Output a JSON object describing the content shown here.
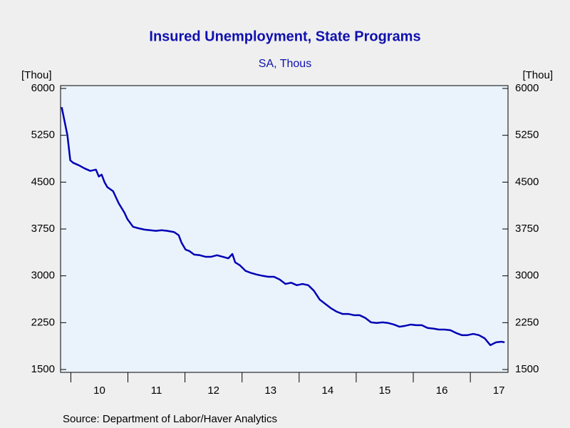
{
  "chart_data": {
    "type": "line",
    "title": "Insured Unemployment, State Programs",
    "subtitle": "SA, Thous",
    "y_label": "[Thou]",
    "y2_label": "[Thou]",
    "source": "Source:  Department of Labor/Haver Analytics",
    "x": [
      9.84,
      9.89,
      9.94,
      9.99,
      10.04,
      10.14,
      10.24,
      10.34,
      10.44,
      10.49,
      10.54,
      10.59,
      10.64,
      10.74,
      10.84,
      10.94,
      10.99,
      11.09,
      11.19,
      11.29,
      11.39,
      11.49,
      11.59,
      11.69,
      11.81,
      11.89,
      11.94,
      12.01,
      12.08,
      12.16,
      12.26,
      12.36,
      12.46,
      12.56,
      12.66,
      12.76,
      12.83,
      12.88,
      12.96,
      13.06,
      13.16,
      13.26,
      13.36,
      13.46,
      13.56,
      13.66,
      13.76,
      13.86,
      13.96,
      14.06,
      14.16,
      14.26,
      14.36,
      14.46,
      14.56,
      14.66,
      14.76,
      14.86,
      14.96,
      15.06,
      15.16,
      15.26,
      15.36,
      15.46,
      15.56,
      15.66,
      15.76,
      15.86,
      15.96,
      16.05,
      16.15,
      16.25,
      16.35,
      16.45,
      16.55,
      16.65,
      16.75,
      16.85,
      16.95,
      17.05,
      17.15,
      17.25,
      17.35,
      17.45,
      17.55,
      17.6
    ],
    "series": [
      {
        "color": "#0000b4",
        "values": [
          5700,
          5475,
          5250,
          4850,
          4810,
          4770,
          4720,
          4680,
          4700,
          4590,
          4620,
          4500,
          4420,
          4355,
          4160,
          4010,
          3910,
          3785,
          3760,
          3740,
          3730,
          3720,
          3730,
          3720,
          3700,
          3650,
          3530,
          3420,
          3395,
          3340,
          3330,
          3305,
          3305,
          3330,
          3305,
          3280,
          3350,
          3215,
          3170,
          3080,
          3045,
          3020,
          3000,
          2985,
          2985,
          2940,
          2870,
          2890,
          2850,
          2870,
          2850,
          2760,
          2620,
          2550,
          2480,
          2425,
          2390,
          2390,
          2370,
          2370,
          2325,
          2255,
          2245,
          2255,
          2245,
          2220,
          2185,
          2200,
          2220,
          2210,
          2210,
          2165,
          2155,
          2140,
          2140,
          2130,
          2085,
          2050,
          2050,
          2070,
          2050,
          2000,
          1890,
          1935,
          1945,
          1935
        ]
      }
    ],
    "xlim": [
      9.82,
      17.66
    ],
    "xticks": [
      {
        "value": 10.5,
        "label": "10"
      },
      {
        "value": 11.5,
        "label": "11"
      },
      {
        "value": 12.5,
        "label": "12"
      },
      {
        "value": 13.5,
        "label": "13"
      },
      {
        "value": 14.5,
        "label": "14"
      },
      {
        "value": 15.5,
        "label": "15"
      },
      {
        "value": 16.5,
        "label": "16"
      },
      {
        "value": 17.5,
        "label": "17"
      }
    ],
    "ylim": [
      1500,
      6000
    ],
    "yticks": [
      1500,
      2250,
      3000,
      3750,
      4500,
      5250,
      6000
    ],
    "y2lim": [
      1500,
      6000
    ],
    "y2ticks": [
      1500,
      2250,
      3000,
      3750,
      4500,
      5250,
      6000
    ],
    "grid": false
  }
}
